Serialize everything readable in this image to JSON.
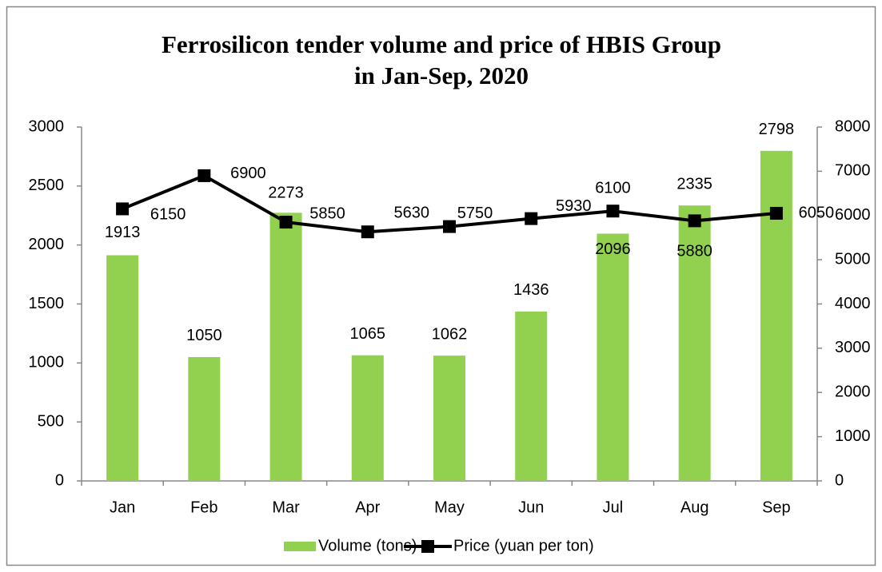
{
  "chart_data": {
    "type": "bar",
    "title": [
      "Ferrosilicon tender volume and price of HBIS Group",
      "in Jan-Sep, 2020"
    ],
    "categories": [
      "Jan",
      "Feb",
      "Mar",
      "Apr",
      "May",
      "Jun",
      "Jul",
      "Aug",
      "Sep"
    ],
    "series": [
      {
        "name": "Volume (tons)",
        "type": "bar",
        "color": "#92d050",
        "values": [
          1913,
          1050,
          2273,
          1065,
          1062,
          1436,
          2096,
          2335,
          2798
        ]
      },
      {
        "name": "Price (yuan per ton)",
        "type": "line",
        "axis": "y2",
        "color": "#000000",
        "values": [
          6150,
          6900,
          5850,
          5630,
          5750,
          5930,
          6100,
          5880,
          6050
        ]
      }
    ],
    "ylim": [
      0,
      3000
    ],
    "yticks": [
      0,
      500,
      1000,
      1500,
      2000,
      2500,
      3000
    ],
    "y2lim": [
      0,
      8000
    ],
    "y2ticks": [
      0,
      1000,
      2000,
      3000,
      4000,
      5000,
      6000,
      7000,
      8000
    ],
    "legend": "bottom"
  }
}
